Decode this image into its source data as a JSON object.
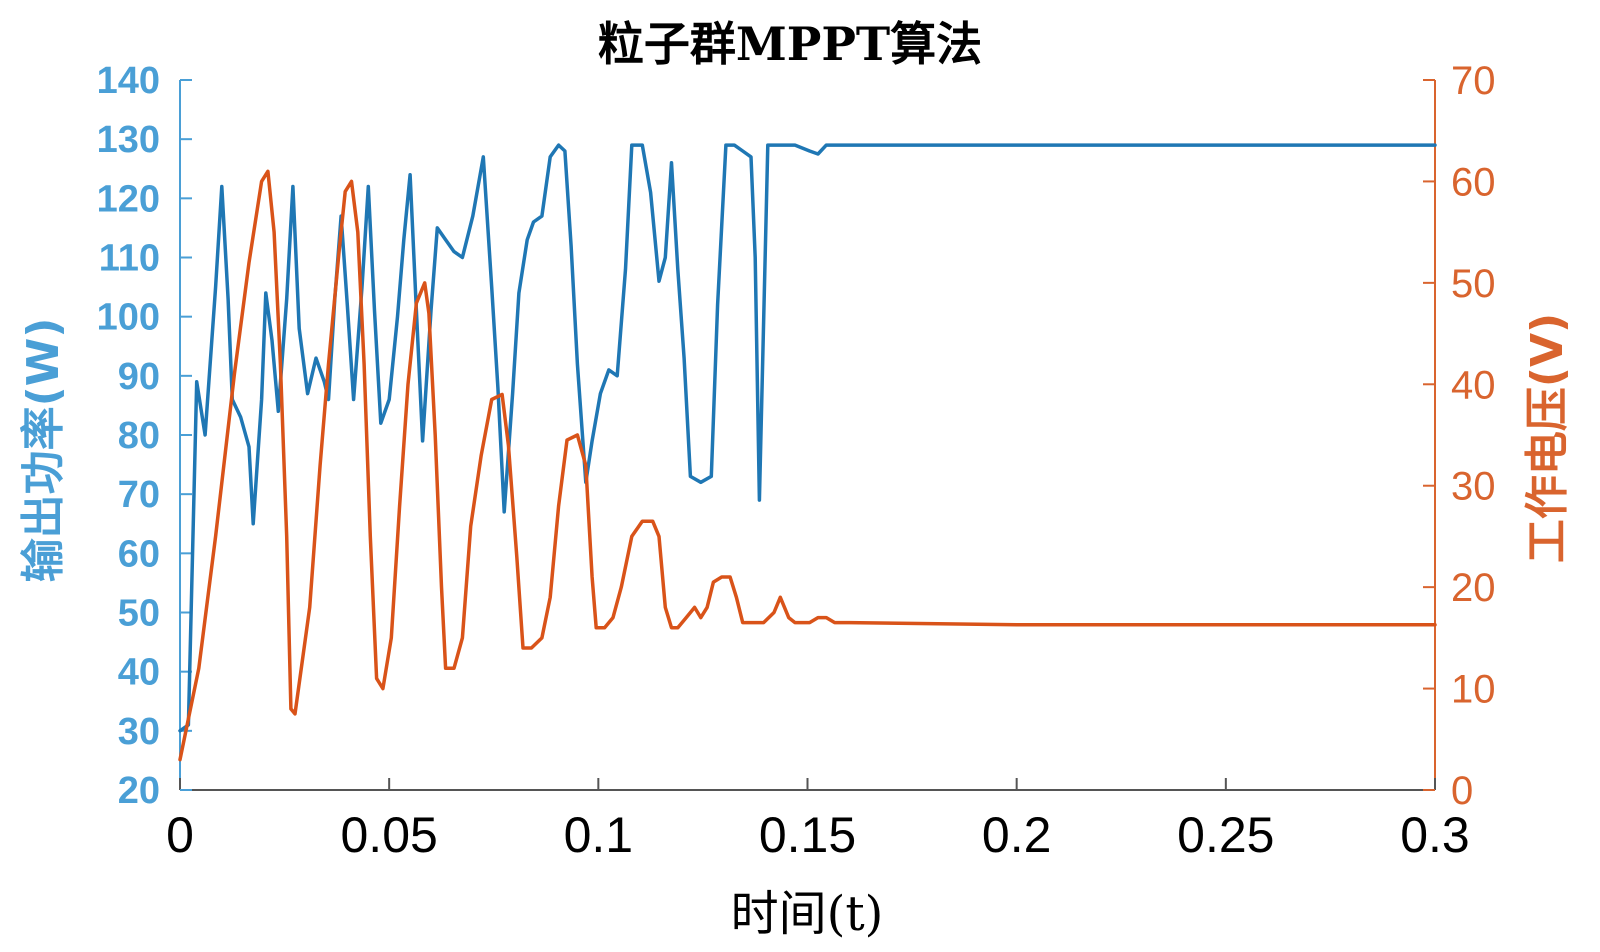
{
  "chart_data": {
    "type": "line",
    "title": "粒子群MPPT算法",
    "xlabel": "时间(t)",
    "ylabel_left": "输出功率(W)",
    "ylabel_right": "工作电压(V)",
    "xlim": [
      0,
      0.3
    ],
    "ylim_left": [
      20,
      140
    ],
    "ylim_right": [
      0,
      70
    ],
    "x_ticks": [
      "0",
      "0.05",
      "0.1",
      "0.15",
      "0.2",
      "0.25",
      "0.3"
    ],
    "y_left_ticks": [
      "20",
      "30",
      "40",
      "50",
      "60",
      "70",
      "80",
      "90",
      "100",
      "110",
      "120",
      "130",
      "140"
    ],
    "y_right_ticks": [
      "0",
      "10",
      "20",
      "30",
      "40",
      "50",
      "60",
      "70"
    ],
    "colors": {
      "left": "#2e7ebf",
      "right": "#d95319",
      "left_axis": "#4a9fd6",
      "right_axis": "#d9642e"
    },
    "grid": false,
    "series": [
      {
        "axis": "left",
        "color": "#1f77b4",
        "points": [
          [
            0.0,
            30
          ],
          [
            0.002,
            31
          ],
          [
            0.004,
            89
          ],
          [
            0.006,
            80
          ],
          [
            0.0085,
            105
          ],
          [
            0.01,
            122
          ],
          [
            0.0115,
            103
          ],
          [
            0.0125,
            86
          ],
          [
            0.0145,
            83
          ],
          [
            0.0165,
            78
          ],
          [
            0.0175,
            65
          ],
          [
            0.0195,
            86
          ],
          [
            0.0205,
            104
          ],
          [
            0.022,
            96
          ],
          [
            0.0235,
            84
          ],
          [
            0.0255,
            103
          ],
          [
            0.027,
            122
          ],
          [
            0.0285,
            98
          ],
          [
            0.0305,
            87
          ],
          [
            0.0325,
            93
          ],
          [
            0.0345,
            89
          ],
          [
            0.0355,
            86
          ],
          [
            0.037,
            103
          ],
          [
            0.0385,
            117
          ],
          [
            0.04,
            102
          ],
          [
            0.0415,
            86
          ],
          [
            0.0435,
            105
          ],
          [
            0.045,
            122
          ],
          [
            0.0465,
            101
          ],
          [
            0.048,
            82
          ],
          [
            0.05,
            86
          ],
          [
            0.052,
            100
          ],
          [
            0.0535,
            113
          ],
          [
            0.055,
            124
          ],
          [
            0.0565,
            101
          ],
          [
            0.058,
            79
          ],
          [
            0.06,
            101
          ],
          [
            0.0615,
            115
          ],
          [
            0.0635,
            113
          ],
          [
            0.0655,
            111
          ],
          [
            0.0675,
            110
          ],
          [
            0.07,
            117
          ],
          [
            0.0725,
            127
          ],
          [
            0.0745,
            105
          ],
          [
            0.076,
            88
          ],
          [
            0.0775,
            67
          ],
          [
            0.0795,
            87
          ],
          [
            0.081,
            104
          ],
          [
            0.083,
            113
          ],
          [
            0.0845,
            116
          ],
          [
            0.0865,
            117
          ],
          [
            0.0885,
            127
          ],
          [
            0.0905,
            129
          ],
          [
            0.092,
            128
          ],
          [
            0.0935,
            112
          ],
          [
            0.095,
            92
          ],
          [
            0.097,
            72
          ],
          [
            0.0985,
            79
          ],
          [
            0.1005,
            87
          ],
          [
            0.1025,
            91
          ],
          [
            0.1045,
            90
          ],
          [
            0.1065,
            108
          ],
          [
            0.108,
            129
          ],
          [
            0.1105,
            129
          ],
          [
            0.1125,
            121
          ],
          [
            0.1145,
            106
          ],
          [
            0.116,
            110
          ],
          [
            0.1175,
            126
          ],
          [
            0.119,
            108
          ],
          [
            0.1205,
            93
          ],
          [
            0.122,
            73
          ],
          [
            0.1245,
            72
          ],
          [
            0.127,
            73
          ],
          [
            0.1285,
            102
          ],
          [
            0.1305,
            129
          ],
          [
            0.1325,
            129
          ],
          [
            0.1345,
            128
          ],
          [
            0.1365,
            127
          ],
          [
            0.1375,
            110
          ],
          [
            0.1385,
            69
          ],
          [
            0.1405,
            129
          ],
          [
            0.1425,
            129
          ],
          [
            0.147,
            129
          ],
          [
            0.1505,
            128
          ],
          [
            0.1525,
            127.5
          ],
          [
            0.1545,
            129
          ],
          [
            0.16,
            129
          ],
          [
            0.2,
            129
          ],
          [
            0.25,
            129
          ],
          [
            0.3,
            129
          ]
        ]
      },
      {
        "axis": "right",
        "color": "#d95319",
        "points": [
          [
            0.0,
            3
          ],
          [
            0.0045,
            12
          ],
          [
            0.0085,
            25
          ],
          [
            0.013,
            41
          ],
          [
            0.0165,
            52
          ],
          [
            0.0195,
            60
          ],
          [
            0.021,
            61
          ],
          [
            0.0225,
            55
          ],
          [
            0.024,
            42
          ],
          [
            0.0255,
            25
          ],
          [
            0.0265,
            8
          ],
          [
            0.0275,
            7.5
          ],
          [
            0.029,
            12
          ],
          [
            0.031,
            18
          ],
          [
            0.0335,
            32
          ],
          [
            0.0355,
            42
          ],
          [
            0.038,
            53
          ],
          [
            0.0395,
            59
          ],
          [
            0.041,
            60
          ],
          [
            0.0425,
            55
          ],
          [
            0.044,
            42
          ],
          [
            0.0455,
            25
          ],
          [
            0.047,
            11
          ],
          [
            0.0485,
            10
          ],
          [
            0.0505,
            15
          ],
          [
            0.0525,
            28
          ],
          [
            0.0545,
            40
          ],
          [
            0.0565,
            48
          ],
          [
            0.0585,
            50
          ],
          [
            0.0595,
            47
          ],
          [
            0.061,
            35
          ],
          [
            0.0625,
            20
          ],
          [
            0.0635,
            12
          ],
          [
            0.0655,
            12
          ],
          [
            0.0675,
            15
          ],
          [
            0.0695,
            26
          ],
          [
            0.072,
            33
          ],
          [
            0.0745,
            38.5
          ],
          [
            0.077,
            39
          ],
          [
            0.0785,
            34
          ],
          [
            0.0805,
            23
          ],
          [
            0.082,
            14
          ],
          [
            0.084,
            14
          ],
          [
            0.0865,
            15
          ],
          [
            0.0885,
            19
          ],
          [
            0.0905,
            28
          ],
          [
            0.0925,
            34.5
          ],
          [
            0.095,
            35
          ],
          [
            0.097,
            32
          ],
          [
            0.0985,
            21
          ],
          [
            0.0995,
            16
          ],
          [
            0.1015,
            16
          ],
          [
            0.1035,
            17
          ],
          [
            0.1055,
            20
          ],
          [
            0.108,
            25
          ],
          [
            0.1105,
            26.5
          ],
          [
            0.113,
            26.5
          ],
          [
            0.1145,
            25
          ],
          [
            0.116,
            18
          ],
          [
            0.1175,
            16
          ],
          [
            0.119,
            16
          ],
          [
            0.121,
            17
          ],
          [
            0.123,
            18
          ],
          [
            0.1245,
            17
          ],
          [
            0.126,
            18
          ],
          [
            0.1275,
            20.5
          ],
          [
            0.1295,
            21
          ],
          [
            0.1315,
            21
          ],
          [
            0.133,
            19
          ],
          [
            0.1345,
            16.5
          ],
          [
            0.137,
            16.5
          ],
          [
            0.1395,
            16.5
          ],
          [
            0.142,
            17.5
          ],
          [
            0.1435,
            19
          ],
          [
            0.1455,
            17
          ],
          [
            0.147,
            16.5
          ],
          [
            0.1505,
            16.5
          ],
          [
            0.1525,
            17
          ],
          [
            0.1545,
            17
          ],
          [
            0.1565,
            16.5
          ],
          [
            0.16,
            16.5
          ],
          [
            0.2,
            16.3
          ],
          [
            0.25,
            16.3
          ],
          [
            0.3,
            16.3
          ]
        ]
      }
    ]
  }
}
